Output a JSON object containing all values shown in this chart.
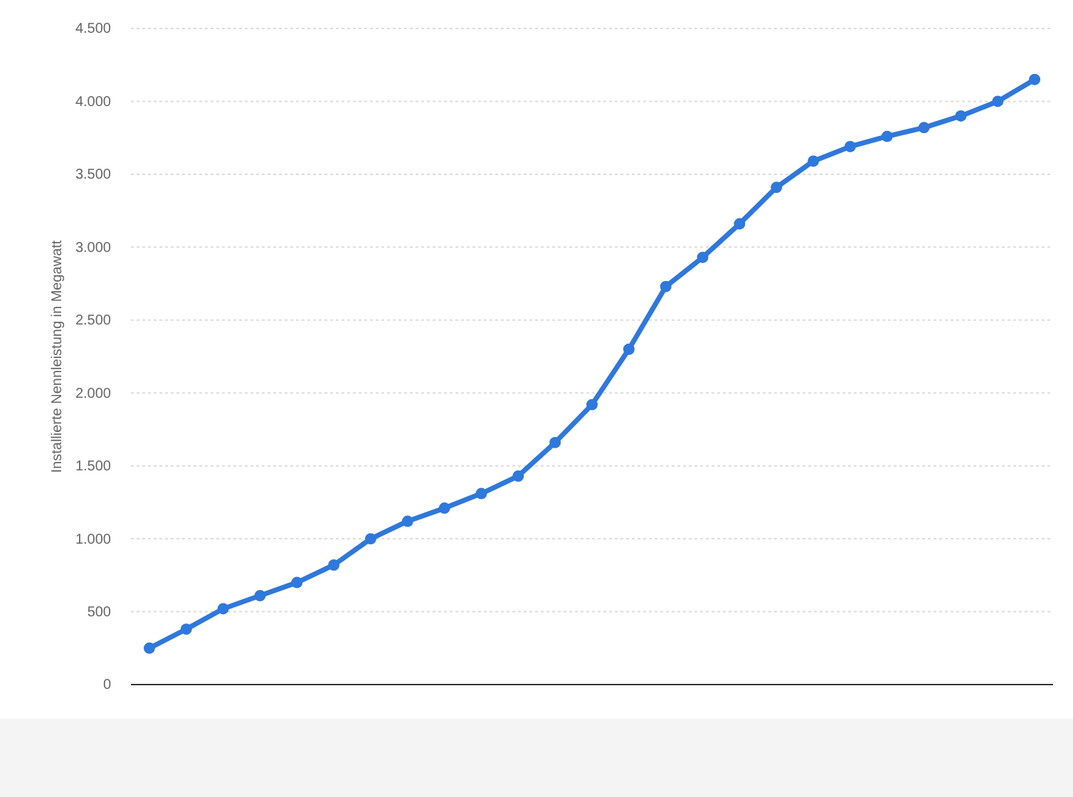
{
  "chart_data": {
    "type": "line",
    "ylabel": "Installierte Nennleistung in Megawatt",
    "categories": [
      null,
      null,
      null,
      null,
      null,
      null,
      null,
      null,
      null,
      null,
      null,
      null,
      null,
      null,
      null,
      null,
      null,
      null,
      null,
      null,
      null,
      null,
      null,
      null,
      null
    ],
    "series": [
      {
        "color": "#2f78dc",
        "values": [
          250,
          380,
          520,
          610,
          700,
          820,
          1000,
          1120,
          1210,
          1310,
          1430,
          1660,
          1920,
          2300,
          2730,
          2930,
          3160,
          3410,
          3590,
          3690,
          3760,
          3820,
          3900,
          4000,
          4150
        ]
      }
    ],
    "ylim": [
      0,
      4500
    ],
    "yticks": [
      0,
      500,
      {
        "value": 1000,
        "label": "1.000"
      },
      {
        "value": 1500,
        "label": "1.500"
      },
      {
        "value": 2000,
        "label": "2.000"
      },
      {
        "value": 2500,
        "label": "2.500"
      },
      {
        "value": 3000,
        "label": "3.000"
      },
      {
        "value": 3500,
        "label": "3.500"
      },
      {
        "value": 4000,
        "label": "4.000"
      },
      {
        "value": 4500,
        "label": "4.500"
      }
    ],
    "grid": "y",
    "marker": "circle",
    "line_style": "solid"
  }
}
